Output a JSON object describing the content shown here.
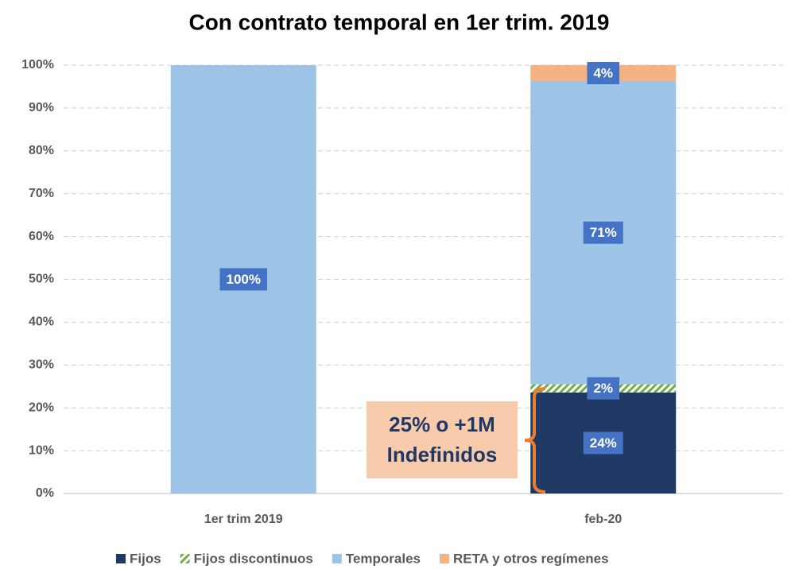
{
  "chart_data": {
    "type": "stacked_bar",
    "title": "Con contrato temporal en 1er trim. 2019",
    "categories": [
      "1er trim 2019",
      "feb-20"
    ],
    "series": [
      {
        "name": "Fijos",
        "color": "#203864",
        "values": [
          null,
          23.6
        ],
        "value_labels": [
          null,
          "24%"
        ]
      },
      {
        "name": "Fijos discontinuos",
        "color": "#70ad47",
        "hatch": true,
        "values": [
          null,
          1.9
        ],
        "value_labels": [
          null,
          "2%"
        ]
      },
      {
        "name": "Temporales",
        "color": "#9dc3e6",
        "values": [
          100,
          70.8
        ],
        "value_labels": [
          "100%",
          "71%"
        ]
      },
      {
        "name": "RETA y otros regímenes",
        "color": "#f4b183",
        "values": [
          null,
          3.7
        ],
        "value_labels": [
          null,
          "4%"
        ]
      }
    ],
    "ylim": [
      0,
      100
    ],
    "yticks": [
      {
        "value": 0,
        "label": "0%"
      },
      {
        "value": 10,
        "label": "10%"
      },
      {
        "value": 20,
        "label": "20%"
      },
      {
        "value": 30,
        "label": "30%"
      },
      {
        "value": 40,
        "label": "40%"
      },
      {
        "value": 50,
        "label": "50%"
      },
      {
        "value": 60,
        "label": "60%"
      },
      {
        "value": 70,
        "label": "70%"
      },
      {
        "value": 80,
        "label": "80%"
      },
      {
        "value": 90,
        "label": "90%"
      },
      {
        "value": 100,
        "label": "100%"
      }
    ],
    "grid": true,
    "legend": "bottom",
    "annotation": [
      "25% o +1M",
      "Indefinidos"
    ]
  }
}
